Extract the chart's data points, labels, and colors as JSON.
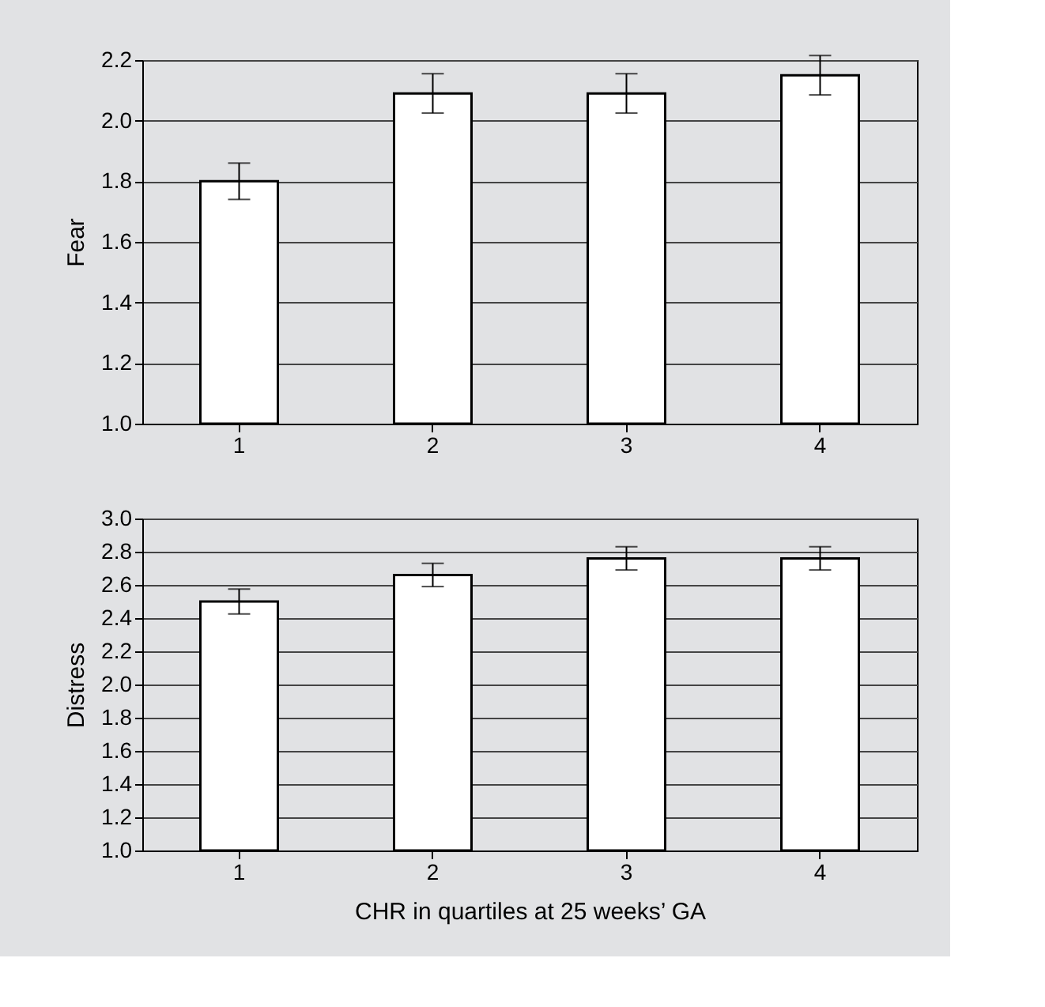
{
  "chart_data": [
    {
      "type": "bar",
      "ylabel": "Fear",
      "categories": [
        "1",
        "2",
        "3",
        "4"
      ],
      "values": [
        1.8,
        2.09,
        2.09,
        2.15
      ],
      "errors": [
        0.06,
        0.065,
        0.065,
        0.065
      ],
      "color": "#ffffff",
      "ylim": [
        1.0,
        2.2
      ],
      "yticks": [
        {
          "value": 1.0,
          "label": "1.0"
        },
        1.2,
        1.4,
        1.6,
        1.8,
        {
          "value": 2.0,
          "label": "2.0"
        },
        2.2
      ],
      "grid": "y"
    },
    {
      "type": "bar",
      "ylabel": "Distress",
      "xlabel": "CHR in quartiles at 25 weeks’ GA",
      "categories": [
        "1",
        "2",
        "3",
        "4"
      ],
      "values": [
        2.5,
        2.66,
        2.76,
        2.76
      ],
      "errors": [
        0.075,
        0.07,
        0.07,
        0.07
      ],
      "color": "#ffffff",
      "ylim": [
        1.0,
        3.0
      ],
      "yticks": [
        {
          "value": 1.0,
          "label": "1.0"
        },
        1.2,
        1.4,
        1.6,
        1.8,
        {
          "value": 2.0,
          "label": "2.0"
        },
        2.2,
        2.4,
        2.6,
        2.8,
        {
          "value": 3.0,
          "label": "3.0"
        }
      ],
      "grid": "y"
    }
  ]
}
